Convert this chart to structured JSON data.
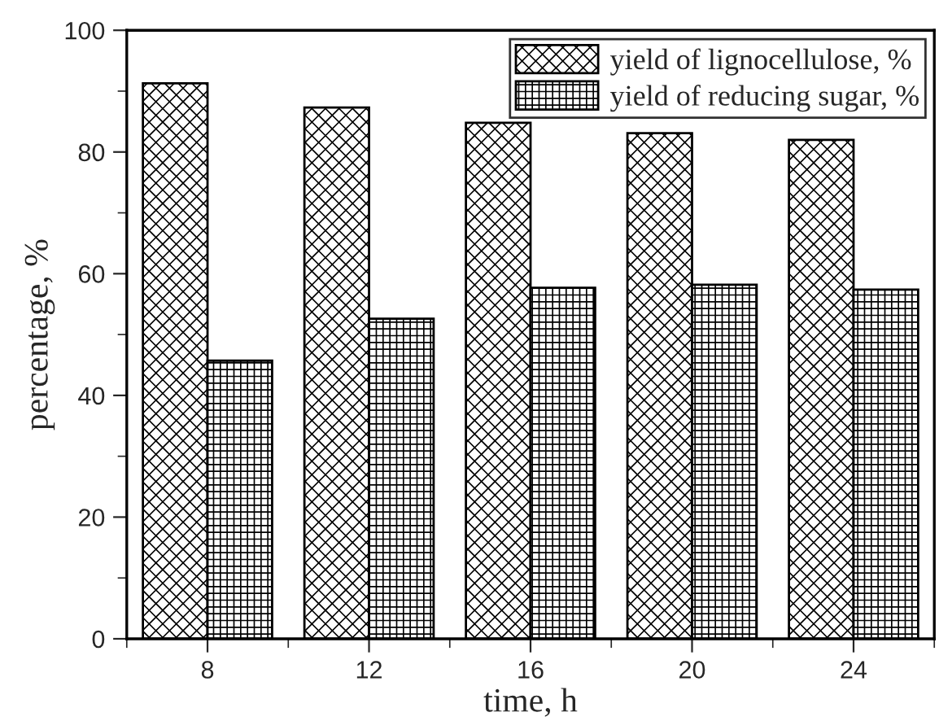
{
  "chart_data": {
    "type": "bar",
    "xlabel": "time, h",
    "ylabel": "percentage, %",
    "categories": [
      "8",
      "12",
      "16",
      "20",
      "24"
    ],
    "series": [
      {
        "name": "yield of lignocellulose, %",
        "color": "#000000",
        "values": [
          91.3,
          87.3,
          84.8,
          83.1,
          82.0
        ]
      },
      {
        "name": "yield of reducing sugar, %",
        "color": "#000000",
        "values": [
          45.7,
          52.6,
          57.7,
          58.2,
          57.4
        ]
      }
    ],
    "ylim": [
      0,
      100
    ],
    "yticks": [
      0,
      20,
      40,
      60,
      80,
      100
    ],
    "grid": false,
    "legend": "top right"
  }
}
